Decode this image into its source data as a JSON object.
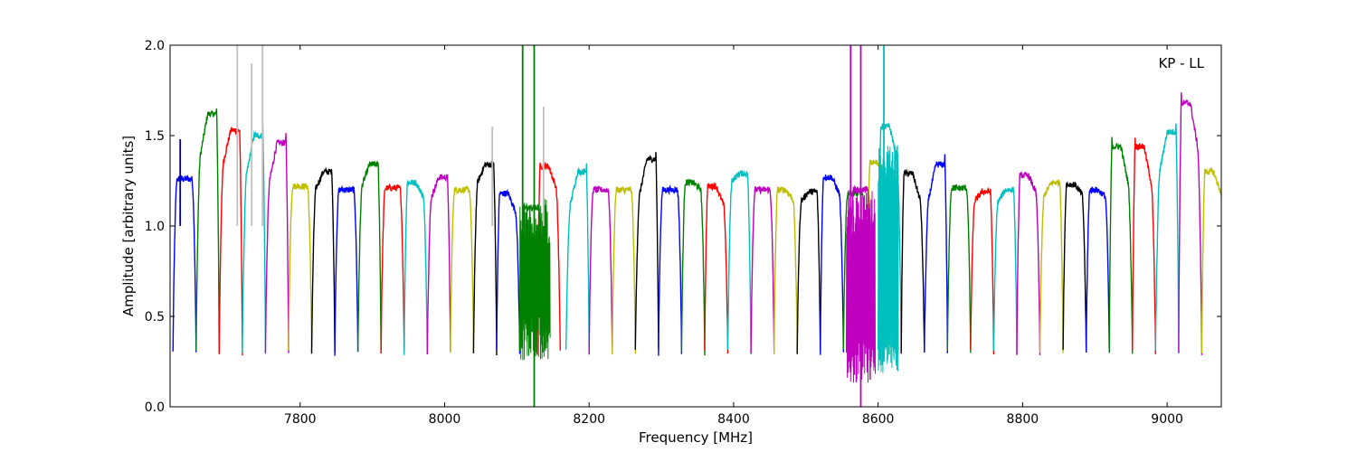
{
  "chart_data": {
    "type": "line",
    "title": "",
    "annotation": "KP - LL",
    "xlabel": "Frequency [MHz]",
    "ylabel": "Amplitude [arbitrary units]",
    "xlim": [
      7620,
      9075
    ],
    "ylim": [
      0.0,
      2.0
    ],
    "xticks": [
      7800,
      8000,
      8200,
      8400,
      8600,
      8800,
      9000
    ],
    "yticks": [
      0.0,
      0.5,
      1.0,
      1.5,
      2.0
    ],
    "xtick_labels": [
      "7800",
      "8000",
      "8200",
      "8400",
      "8600",
      "8800",
      "9000"
    ],
    "ytick_labels": [
      "0.0",
      "0.5",
      "1.0",
      "1.5",
      "2.0"
    ],
    "grid": false,
    "band_width_mhz": 32,
    "raw_color": "#bfbfbf",
    "bands": [
      {
        "start": 7624,
        "peak": 1.26,
        "shape": 0.0,
        "color": "#0000ff"
      },
      {
        "start": 7656,
        "peak": 1.62,
        "shape": 1.0,
        "color": "#008000"
      },
      {
        "start": 7688,
        "peak": 1.53,
        "shape": 0.8,
        "color": "#ff0000"
      },
      {
        "start": 7720,
        "peak": 1.5,
        "shape": 1.0,
        "color": "#00bfbf"
      },
      {
        "start": 7752,
        "peak": 1.46,
        "shape": 1.0,
        "color": "#bf00bf"
      },
      {
        "start": 7784,
        "peak": 1.22,
        "shape": 0.0,
        "color": "#bfbf00"
      },
      {
        "start": 7816,
        "peak": 1.3,
        "shape": 0.5,
        "color": "#000000"
      },
      {
        "start": 7848,
        "peak": 1.2,
        "shape": 0.0,
        "color": "#0000ff"
      },
      {
        "start": 7880,
        "peak": 1.34,
        "shape": 0.6,
        "color": "#008000"
      },
      {
        "start": 7912,
        "peak": 1.21,
        "shape": 0.0,
        "color": "#ff0000"
      },
      {
        "start": 7944,
        "peak": 1.24,
        "shape": -0.4,
        "color": "#00bfbf"
      },
      {
        "start": 7976,
        "peak": 1.27,
        "shape": 0.6,
        "color": "#bf00bf"
      },
      {
        "start": 8008,
        "peak": 1.2,
        "shape": 0.0,
        "color": "#bfbf00"
      },
      {
        "start": 8040,
        "peak": 1.34,
        "shape": 0.5,
        "color": "#000000"
      },
      {
        "start": 8072,
        "peak": 1.18,
        "shape": -0.6,
        "color": "#0000ff"
      },
      {
        "start": 8104,
        "peak": 1.1,
        "shape": 0.0,
        "color": "#008000"
      },
      {
        "start": 8128,
        "peak": 1.33,
        "shape": -0.6,
        "color": "#ff0000"
      },
      {
        "start": 8168,
        "peak": 1.3,
        "shape": 1.0,
        "color": "#00bfbf"
      },
      {
        "start": 8200,
        "peak": 1.2,
        "shape": 0.0,
        "color": "#bf00bf"
      },
      {
        "start": 8232,
        "peak": 1.2,
        "shape": 0.0,
        "color": "#bfbf00"
      },
      {
        "start": 8264,
        "peak": 1.37,
        "shape": 1.0,
        "color": "#000000"
      },
      {
        "start": 8296,
        "peak": 1.2,
        "shape": 0.0,
        "color": "#0000ff"
      },
      {
        "start": 8328,
        "peak": 1.24,
        "shape": -0.2,
        "color": "#008000"
      },
      {
        "start": 8360,
        "peak": 1.22,
        "shape": -0.6,
        "color": "#ff0000"
      },
      {
        "start": 8392,
        "peak": 1.29,
        "shape": 0.2,
        "color": "#00bfbf"
      },
      {
        "start": 8424,
        "peak": 1.2,
        "shape": 0.0,
        "color": "#bf00bf"
      },
      {
        "start": 8456,
        "peak": 1.2,
        "shape": -0.3,
        "color": "#bfbf00"
      },
      {
        "start": 8488,
        "peak": 1.19,
        "shape": 0.3,
        "color": "#000000"
      },
      {
        "start": 8520,
        "peak": 1.27,
        "shape": -0.5,
        "color": "#0000ff"
      },
      {
        "start": 8552,
        "peak": 1.18,
        "shape": 0.0,
        "color": "#008000"
      },
      {
        "start": 8560,
        "peak": 1.2,
        "shape": 0.0,
        "color": "#bf00bf"
      },
      {
        "start": 8584,
        "peak": 1.35,
        "shape": -0.3,
        "color": "#bfbf00"
      },
      {
        "start": 8600,
        "peak": 1.55,
        "shape": -0.8,
        "color": "#00bfbf"
      },
      {
        "start": 8632,
        "peak": 1.29,
        "shape": -0.8,
        "color": "#000000"
      },
      {
        "start": 8664,
        "peak": 1.34,
        "shape": 1.0,
        "color": "#0000ff"
      },
      {
        "start": 8696,
        "peak": 1.21,
        "shape": 0.0,
        "color": "#008000"
      },
      {
        "start": 8728,
        "peak": 1.19,
        "shape": 0.3,
        "color": "#ff0000"
      },
      {
        "start": 8760,
        "peak": 1.2,
        "shape": 0.4,
        "color": "#00bfbf"
      },
      {
        "start": 8792,
        "peak": 1.28,
        "shape": -0.5,
        "color": "#bf00bf"
      },
      {
        "start": 8824,
        "peak": 1.24,
        "shape": 0.4,
        "color": "#bfbf00"
      },
      {
        "start": 8856,
        "peak": 1.23,
        "shape": -0.3,
        "color": "#000000"
      },
      {
        "start": 8888,
        "peak": 1.2,
        "shape": -0.2,
        "color": "#0000ff"
      },
      {
        "start": 8920,
        "peak": 1.44,
        "shape": -1.0,
        "color": "#008000"
      },
      {
        "start": 8952,
        "peak": 1.44,
        "shape": -1.0,
        "color": "#ff0000"
      },
      {
        "start": 8984,
        "peak": 1.52,
        "shape": 1.0,
        "color": "#00bfbf"
      },
      {
        "start": 9016,
        "peak": 1.68,
        "shape": -1.0,
        "color": "#bf00bf"
      },
      {
        "start": 9048,
        "peak": 1.3,
        "shape": -0.6,
        "color": "#bfbf00"
      }
    ],
    "spikes": [
      {
        "x": 7634,
        "top": 1.48,
        "color": "#000080"
      },
      {
        "x": 7713,
        "top": 2.0,
        "color": "#bfbfbf"
      },
      {
        "x": 7733,
        "top": 1.9,
        "color": "#bfbfbf"
      },
      {
        "x": 7748,
        "top": 2.0,
        "color": "#bfbfbf"
      },
      {
        "x": 8066,
        "top": 1.55,
        "color": "#bfbfbf"
      },
      {
        "x": 8108,
        "top": 2.0,
        "color": "#008000"
      },
      {
        "x": 8124,
        "top": 2.0,
        "color": "#008000"
      },
      {
        "x": 8124,
        "bottom": 0.0,
        "color": "#008000"
      },
      {
        "x": 8137,
        "top": 1.66,
        "color": "#bfbfbf"
      },
      {
        "x": 8562,
        "top": 2.0,
        "color": "#bf00bf"
      },
      {
        "x": 8576,
        "top": 2.0,
        "color": "#bf00bf"
      },
      {
        "x": 8576,
        "bottom": 0.0,
        "color": "#bf00bf"
      },
      {
        "x": 8608,
        "top": 2.0,
        "color": "#00bfbf"
      }
    ],
    "noisy_regions": [
      {
        "from": 8104,
        "to": 8146,
        "color": "#008000",
        "low": 0.25,
        "high": 1.15
      },
      {
        "from": 8556,
        "to": 8596,
        "color": "#bf00bf",
        "low": 0.12,
        "high": 1.2
      },
      {
        "from": 8600,
        "to": 8628,
        "color": "#00bfbf",
        "low": 0.18,
        "high": 1.45
      }
    ]
  }
}
